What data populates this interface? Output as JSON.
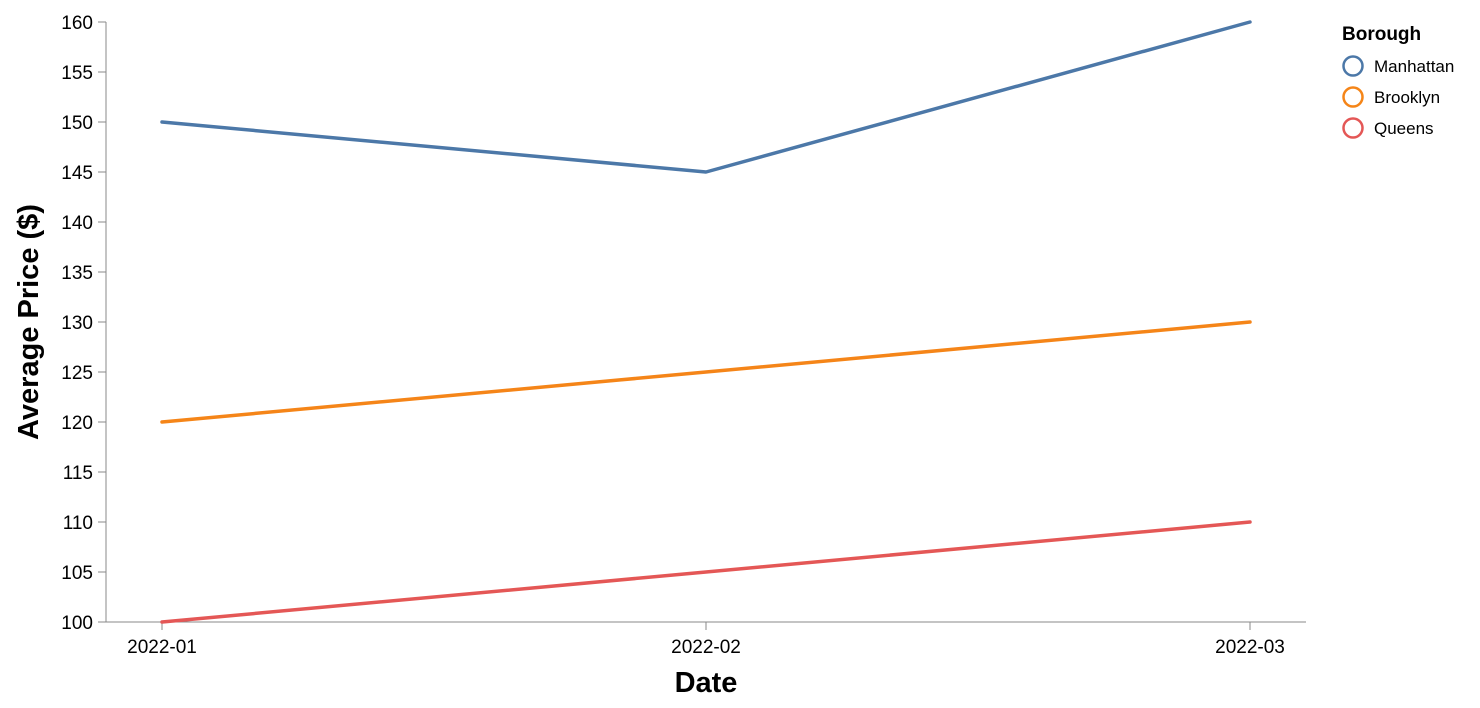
{
  "chart_data": {
    "type": "line",
    "x": [
      "2022-01",
      "2022-02",
      "2022-03"
    ],
    "xlabel": "Date",
    "ylabel": "Average Price ($)",
    "ylim": [
      100,
      160
    ],
    "yticks": [
      100,
      105,
      110,
      115,
      120,
      125,
      130,
      135,
      140,
      145,
      150,
      155,
      160
    ],
    "grid": false,
    "legend": {
      "title": "Borough",
      "position": "top-right"
    },
    "series": [
      {
        "name": "Manhattan",
        "values": [
          150,
          145,
          160
        ],
        "color": "#4c78a8"
      },
      {
        "name": "Brooklyn",
        "values": [
          120,
          125,
          130
        ],
        "color": "#f58518"
      },
      {
        "name": "Queens",
        "values": [
          100,
          105,
          110
        ],
        "color": "#e45756"
      }
    ]
  }
}
